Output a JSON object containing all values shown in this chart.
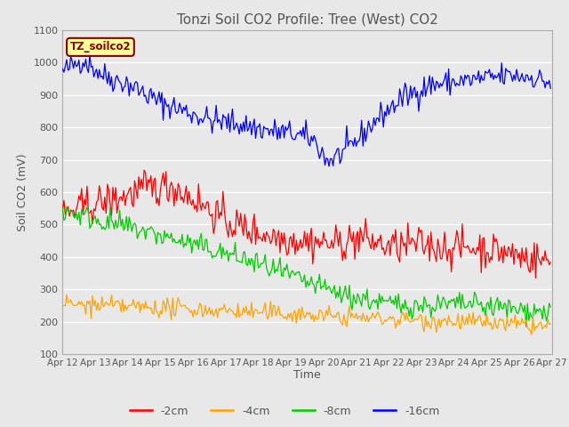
{
  "title": "Tonzi Soil CO2 Profile: Tree (West) CO2",
  "ylabel": "Soil CO2 (mV)",
  "xlabel": "Time",
  "ylim": [
    100,
    1100
  ],
  "xlim": [
    0,
    360
  ],
  "tick_labels": [
    "Apr 12",
    "Apr 13",
    "Apr 14",
    "Apr 15",
    "Apr 16",
    "Apr 17",
    "Apr 18",
    "Apr 19",
    "Apr 20",
    "Apr 21",
    "Apr 22",
    "Apr 23",
    "Apr 24",
    "Apr 25",
    "Apr 26",
    "Apr 27"
  ],
  "legend_labels": [
    "-2cm",
    "-4cm",
    "-8cm",
    "-16cm"
  ],
  "legend_colors": [
    "#ff0000",
    "#ffa500",
    "#00cc00",
    "#0000ff"
  ],
  "line_label": "TZ_soilco2",
  "label_bg": "#ffff99",
  "label_fg": "#880000",
  "fig_bg": "#e8e8e8",
  "plot_bg": "#e8e8e8",
  "grid_color": "#ffffff",
  "yticks": [
    100,
    200,
    300,
    400,
    500,
    600,
    700,
    800,
    900,
    1000,
    1100
  ]
}
